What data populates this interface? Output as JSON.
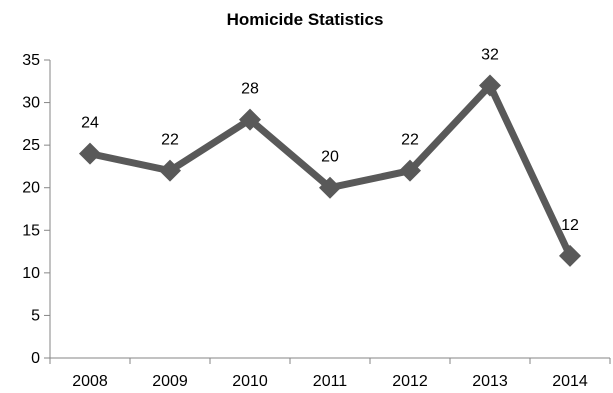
{
  "chart_data": {
    "type": "line",
    "title": "Homicide Statistics",
    "xlabel": "",
    "ylabel": "",
    "categories": [
      "2008",
      "2009",
      "2010",
      "2011",
      "2012",
      "2013",
      "2014"
    ],
    "series": [
      {
        "values": [
          24,
          22,
          28,
          20,
          22,
          32,
          12
        ],
        "color": "#595959",
        "marker": "diamond"
      }
    ],
    "data_labels": [
      "24",
      "22",
      "28",
      "20",
      "22",
      "32",
      "12"
    ],
    "ylim": [
      0,
      35
    ],
    "yticks": [
      0,
      5,
      10,
      15,
      20,
      25,
      30,
      35
    ],
    "ytick_labels": [
      "0",
      "5",
      "10",
      "15",
      "20",
      "25",
      "30",
      "35"
    ],
    "grid": false,
    "legend": "none",
    "colors": {
      "line": "#595959",
      "axis": "#868686"
    }
  }
}
